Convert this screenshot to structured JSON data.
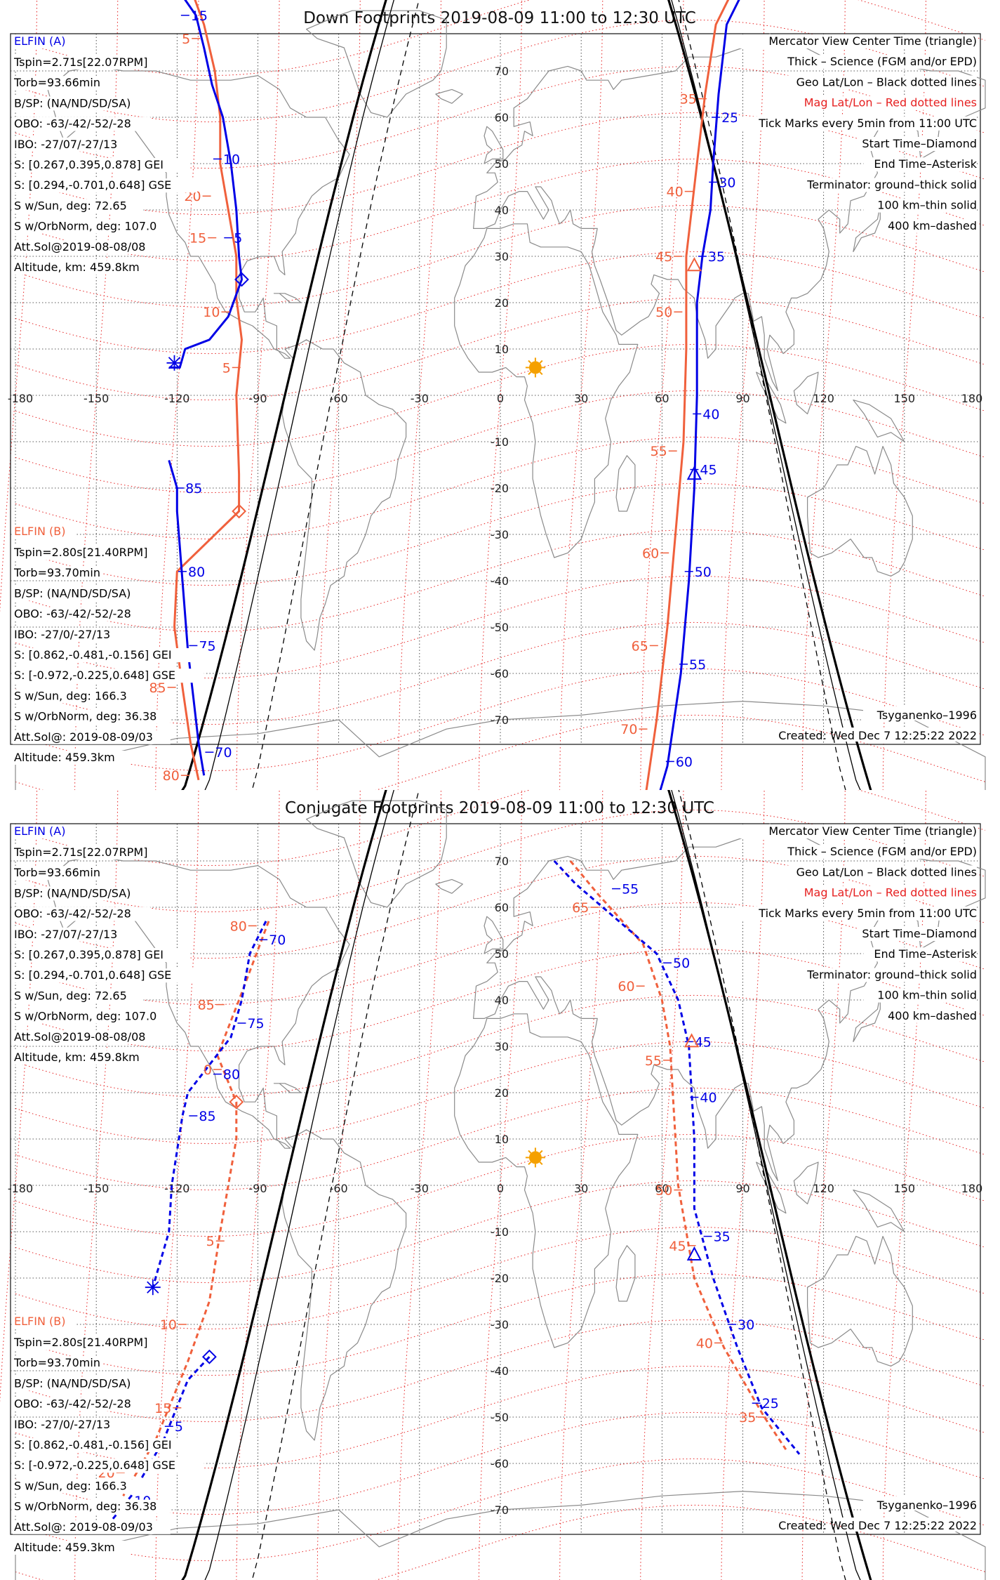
{
  "colors": {
    "elfin_a": "#0000e6",
    "elfin_b": "#f0603c",
    "mag_grid": "#e62020",
    "geo_grid": "#222222",
    "sun": "#f5a000",
    "land": "#8a8a8a"
  },
  "legend_right": [
    "Mercator View Center Time (triangle)",
    "Thick – Science (FGM and/or EPD)",
    "Geo Lat/Lon – Black dotted lines",
    "Mag Lat/Lon – Red dotted lines",
    "Tick Marks every 5min from 11:00 UTC",
    "Start Time–Diamond",
    "End Time–Asterisk",
    "Terminator: ground–thick solid",
    "100 km–thin solid",
    "400 km–dashed"
  ],
  "elfin_a": {
    "name": "ELFIN (A)",
    "lines": [
      "Tspin=2.71s[22.07RPM]",
      "Torb=93.66min",
      "B/SP: (NA/ND/SD/SA)",
      "OBO: -63/-42/-52/-28",
      "IBO: -27/07/-27/13",
      "S: [0.267,0.395,0.878] GEI",
      "S: [0.294,-0.701,0.648] GSE",
      "S w/Sun, deg: 72.65",
      "S w/OrbNorm, deg: 107.0",
      "Att.Sol@2019-08-08/08",
      "Altitude, km: 459.8km"
    ]
  },
  "elfin_b": {
    "name": "ELFIN (B)",
    "lines": [
      "Tspin=2.80s[21.40RPM]",
      "Torb=93.70min",
      "B/SP: (NA/ND/SD/SA)",
      "OBO: -63/-42/-52/-28",
      "IBO: -27/0/-27/13",
      "S: [0.862,-0.481,-0.156] GEI",
      "S: [-0.972,-0.225,0.648] GSE",
      "S w/Sun, deg: 166.3",
      "S w/OrbNorm, deg: 36.38",
      "Att.Sol@: 2019-08-09/03",
      "Altitude: 459.3km"
    ]
  },
  "model": "Tsyganenko–1996",
  "created": "Created: Wed Dec  7 12:25:22 2022",
  "lon_ticks": [
    "-180",
    "-150",
    "-120",
    "-90",
    "-60",
    "-30",
    "0",
    "30",
    "60",
    "90",
    "120",
    "150",
    "180"
  ],
  "lat_ticks": [
    "70",
    "60",
    "50",
    "40",
    "30",
    "20",
    "10",
    "-10",
    "-20",
    "-30",
    "-40",
    "-50",
    "-60",
    "-70"
  ],
  "panels": [
    {
      "id": "down",
      "title": "Down Footprints 2019-08-09 11:00 to 12:30 UTC",
      "a_track_1": [
        [
          -119,
          87
        ],
        [
          -113,
          82
        ],
        [
          -110,
          75
        ],
        [
          -107,
          67
        ],
        [
          -103,
          60
        ],
        [
          -100,
          50
        ],
        [
          -98,
          40
        ],
        [
          -97,
          30
        ],
        [
          -96,
          25
        ],
        [
          -101,
          17
        ],
        [
          -108,
          12
        ],
        [
          -117,
          10
        ],
        [
          -119,
          6
        ],
        [
          -123,
          6
        ]
      ],
      "a_track_2": [
        [
          -123,
          -14
        ],
        [
          -120,
          -20
        ],
        [
          -120,
          -25
        ],
        [
          -118,
          -40
        ],
        [
          -116,
          -55
        ],
        [
          -114,
          -65
        ],
        [
          -112,
          -75
        ],
        [
          -110,
          -82
        ]
      ],
      "b_track": [
        [
          -115,
          88
        ],
        [
          -110,
          80
        ],
        [
          -106,
          70
        ],
        [
          -104,
          60
        ],
        [
          -104,
          50
        ],
        [
          -101,
          40
        ],
        [
          -98,
          30
        ],
        [
          -98,
          21
        ],
        [
          -96,
          12
        ],
        [
          -98,
          0
        ],
        [
          -97,
          -17
        ],
        [
          -97,
          -25
        ],
        [
          -120,
          -38
        ],
        [
          -121,
          -50
        ],
        [
          -118,
          -63
        ],
        [
          -115,
          -75
        ],
        [
          -112,
          -83
        ]
      ],
      "a_track_3": [
        [
          90,
          87
        ],
        [
          84,
          80
        ],
        [
          81,
          65
        ],
        [
          79,
          50
        ],
        [
          78,
          40
        ],
        [
          75,
          30
        ],
        [
          73,
          20
        ],
        [
          73,
          0
        ],
        [
          72,
          -20
        ],
        [
          70,
          -40
        ],
        [
          67,
          -60
        ],
        [
          62,
          -80
        ],
        [
          59,
          -86
        ]
      ],
      "b_track_3": [
        [
          86,
          87
        ],
        [
          80,
          80
        ],
        [
          76,
          65
        ],
        [
          73,
          50
        ],
        [
          71,
          40
        ],
        [
          69,
          30
        ],
        [
          69,
          10
        ],
        [
          68,
          -10
        ],
        [
          65,
          -30
        ],
        [
          62,
          -50
        ],
        [
          58,
          -70
        ],
        [
          54,
          -86
        ]
      ],
      "a_ticks": [
        {
          "lon": -117,
          "lat": 82,
          "t": "15"
        },
        {
          "lon": -105,
          "lat": 51,
          "t": "10"
        },
        {
          "lon": -101,
          "lat": 34,
          "t": "5"
        },
        {
          "lon": -119,
          "lat": -20,
          "t": "85"
        },
        {
          "lon": -118,
          "lat": -38,
          "t": "80"
        },
        {
          "lon": -114,
          "lat": -54,
          "t": "75"
        },
        {
          "lon": -108,
          "lat": -77,
          "t": "70"
        },
        {
          "lon": 80,
          "lat": 60,
          "t": "25"
        },
        {
          "lon": 79,
          "lat": 46,
          "t": "30"
        },
        {
          "lon": 75,
          "lat": 30,
          "t": "35"
        },
        {
          "lon": 73,
          "lat": -4,
          "t": "40"
        },
        {
          "lon": 72,
          "lat": -16,
          "t": "45"
        },
        {
          "lon": 70,
          "lat": -38,
          "t": "50"
        },
        {
          "lon": 68,
          "lat": -58,
          "t": "55"
        },
        {
          "lon": 63,
          "lat": -79,
          "t": "60"
        }
      ],
      "b_ticks": [
        {
          "lon": -113,
          "lat": 77,
          "t": "5"
        },
        {
          "lon": -109,
          "lat": 43,
          "t": "20"
        },
        {
          "lon": -107,
          "lat": 34,
          "t": "15"
        },
        {
          "lon": -102,
          "lat": 18,
          "t": "10"
        },
        {
          "lon": -98,
          "lat": 6,
          "t": "5"
        },
        {
          "lon": -122,
          "lat": -63,
          "t": "85"
        },
        {
          "lon": -117,
          "lat": -82,
          "t": "80"
        },
        {
          "lon": 75,
          "lat": 64,
          "t": "35"
        },
        {
          "lon": 70,
          "lat": 44,
          "t": "40"
        },
        {
          "lon": 66,
          "lat": 30,
          "t": "45"
        },
        {
          "lon": 66,
          "lat": 18,
          "t": "50"
        },
        {
          "lon": 64,
          "lat": -12,
          "t": "55"
        },
        {
          "lon": 61,
          "lat": -34,
          "t": "60"
        },
        {
          "lon": 57,
          "lat": -54,
          "t": "65"
        },
        {
          "lon": 53,
          "lat": -72,
          "t": "70"
        }
      ],
      "a_start": {
        "lon": -96,
        "lat": 25
      },
      "a_end": {
        "lon": -121,
        "lat": 7
      },
      "b_start": {
        "lon": -97,
        "lat": -25
      },
      "center": {
        "lon": 72,
        "lat": 28
      },
      "center2": {
        "lon": 72,
        "lat": -17
      }
    },
    {
      "id": "conj",
      "title": "Conjugate Footprints 2019-08-09 11:00 to 12:30 UTC",
      "a_track_1": [
        [
          -87,
          57
        ],
        [
          -93,
          50
        ],
        [
          -96,
          40
        ],
        [
          -100,
          32
        ],
        [
          -108,
          26
        ],
        [
          -116,
          20
        ],
        [
          -118,
          15
        ],
        [
          -122,
          0
        ],
        [
          -123,
          -10
        ],
        [
          -129,
          -22
        ]
      ],
      "b_track": [
        [
          -86,
          57
        ],
        [
          -97,
          40
        ],
        [
          -105,
          28
        ],
        [
          -98,
          18
        ],
        [
          -98,
          10
        ],
        [
          -104,
          -10
        ],
        [
          -108,
          -25
        ],
        [
          -116,
          -38
        ],
        [
          -128,
          -55
        ],
        [
          -140,
          -67
        ]
      ],
      "a_track_2": [
        [
          -108,
          -37
        ],
        [
          -116,
          -42
        ],
        [
          -125,
          -55
        ],
        [
          -137,
          -67
        ],
        [
          -148,
          -75
        ]
      ],
      "a_track_3": [
        [
          20,
          70
        ],
        [
          28,
          65
        ],
        [
          38,
          60
        ],
        [
          58,
          50
        ],
        [
          66,
          40
        ],
        [
          70,
          30
        ],
        [
          71,
          20
        ],
        [
          72,
          10
        ],
        [
          72,
          -5
        ],
        [
          79,
          -20
        ],
        [
          88,
          -35
        ],
        [
          97,
          -48
        ],
        [
          111,
          -58
        ]
      ],
      "b_track_3": [
        [
          26,
          70
        ],
        [
          36,
          63
        ],
        [
          53,
          52
        ],
        [
          60,
          40
        ],
        [
          63,
          30
        ],
        [
          64,
          20
        ],
        [
          66,
          0
        ],
        [
          72,
          -20
        ],
        [
          83,
          -35
        ],
        [
          98,
          -50
        ],
        [
          106,
          -57
        ]
      ],
      "a_ticks": [
        {
          "lon": -88,
          "lat": 53,
          "t": "70"
        },
        {
          "lon": -96,
          "lat": 35,
          "t": "75"
        },
        {
          "lon": -105,
          "lat": 24,
          "t": "80"
        },
        {
          "lon": -114,
          "lat": 15,
          "t": "85"
        },
        {
          "lon": -123,
          "lat": -52,
          "t": "5"
        },
        {
          "lon": -138,
          "lat": -68,
          "t": "10"
        },
        {
          "lon": 43,
          "lat": 64,
          "t": "55"
        },
        {
          "lon": 62,
          "lat": 48,
          "t": "50"
        },
        {
          "lon": 70,
          "lat": 31,
          "t": "45"
        },
        {
          "lon": 72,
          "lat": 19,
          "t": "40"
        },
        {
          "lon": 77,
          "lat": -11,
          "t": "35"
        },
        {
          "lon": 86,
          "lat": -30,
          "t": "30"
        },
        {
          "lon": 95,
          "lat": -47,
          "t": "25"
        }
      ],
      "b_ticks": [
        {
          "lon": -92,
          "lat": 56,
          "t": "80"
        },
        {
          "lon": -104,
          "lat": 39,
          "t": "85"
        },
        {
          "lon": -105,
          "lat": 25,
          "t": "0"
        },
        {
          "lon": -104,
          "lat": -12,
          "t": "5"
        },
        {
          "lon": -118,
          "lat": -30,
          "t": "10"
        },
        {
          "lon": -120,
          "lat": -48,
          "t": "15"
        },
        {
          "lon": -141,
          "lat": -62,
          "t": "20"
        },
        {
          "lon": 35,
          "lat": 60,
          "t": "65"
        },
        {
          "lon": 52,
          "lat": 43,
          "t": "60"
        },
        {
          "lon": 62,
          "lat": 27,
          "t": "55"
        },
        {
          "lon": 66,
          "lat": -1,
          "t": "50"
        },
        {
          "lon": 71,
          "lat": -13,
          "t": "45"
        },
        {
          "lon": 81,
          "lat": -34,
          "t": "40"
        },
        {
          "lon": 97,
          "lat": -50,
          "t": "35"
        }
      ],
      "a_start": {
        "lon": -108,
        "lat": -37
      },
      "a_end": {
        "lon": -129,
        "lat": -22
      },
      "b_start": {
        "lon": -98,
        "lat": 18
      },
      "center": {
        "lon": 71,
        "lat": 31
      },
      "center2": {
        "lon": 72,
        "lat": -15
      }
    }
  ]
}
